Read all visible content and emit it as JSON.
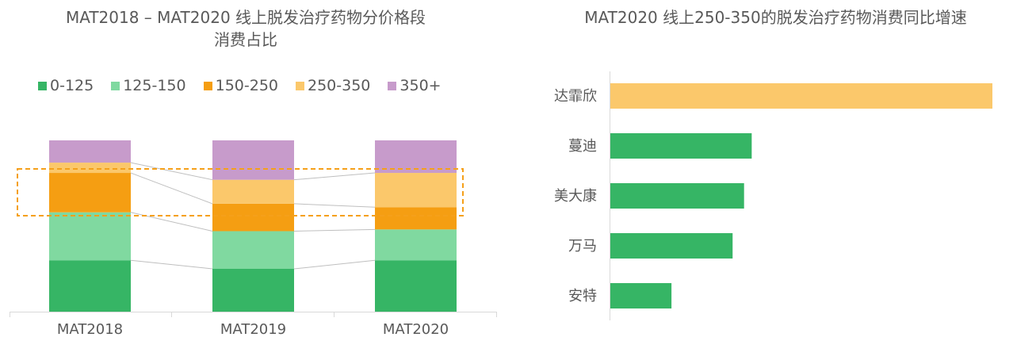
{
  "colors": {
    "0-125": "#36b565",
    "125-150": "#80d9a0",
    "150-250": "#f59e12",
    "250-350": "#fbc86b",
    "350+": "#c79bcb",
    "highlight_box": "#f5a01a",
    "connector": "#bfbfbf",
    "axis": "#d9d9d9",
    "brand_bar_highlight": "#fbc86b",
    "brand_bar_default": "#36b565"
  },
  "chart_data": [
    {
      "type": "bar",
      "stacked": true,
      "title": "MAT2018 – MAT2020 线上脱发治疗药物分价格段消费占比",
      "title_lines": [
        "MAT2018 – MAT2020 线上脱发治疗药物分价格段",
        "消费占比"
      ],
      "categories": [
        "MAT2018",
        "MAT2019",
        "MAT2020"
      ],
      "series": [
        {
          "name": "0-125",
          "values": [
            30,
            25,
            30
          ],
          "color": "#36b565"
        },
        {
          "name": "125-150",
          "values": [
            28,
            22,
            18
          ],
          "color": "#80d9a0"
        },
        {
          "name": "150-250",
          "values": [
            23,
            16,
            13
          ],
          "color": "#f59e12"
        },
        {
          "name": "250-350",
          "values": [
            6,
            14,
            20
          ],
          "color": "#fbc86b"
        },
        {
          "name": "350+",
          "values": [
            13,
            23,
            19
          ],
          "color": "#c79bcb"
        }
      ],
      "ylim": [
        0,
        100
      ],
      "legend_position": "top",
      "grid": false,
      "annotations": [
        "dashed orange box highlighting 150-250 and 250-350 segments",
        "connector lines between stacked segments"
      ]
    },
    {
      "type": "bar",
      "orientation": "horizontal",
      "title": "MAT2020 线上250-350的脱发治疗药物消费同比增速",
      "categories": [
        "达霏欣",
        "蔓迪",
        "美大康",
        "万马",
        "安特"
      ],
      "values": [
        100,
        37,
        35,
        32,
        16
      ],
      "highlight_index": 0,
      "grid": false
    }
  ]
}
